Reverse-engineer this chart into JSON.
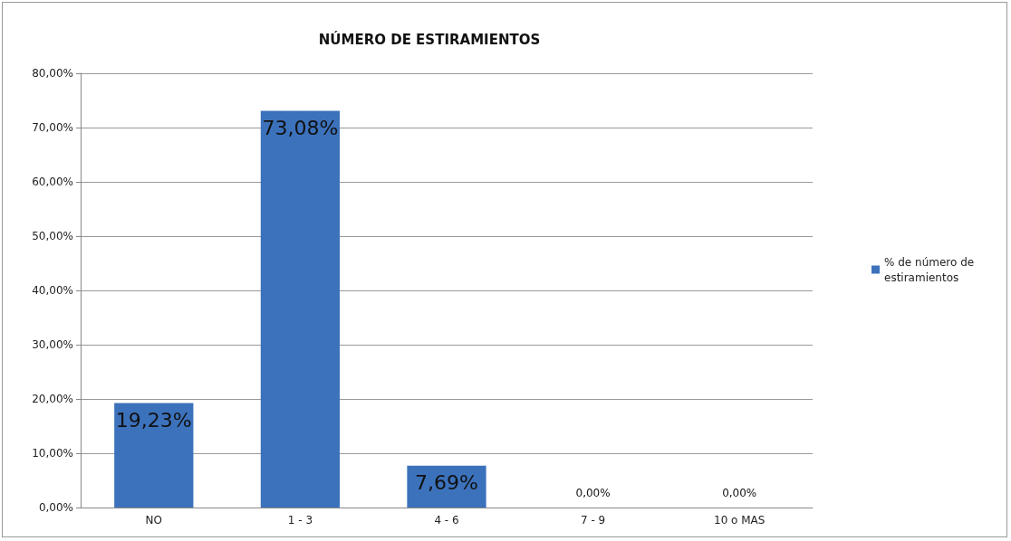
{
  "chart_data": {
    "type": "bar",
    "title": "NÚMERO DE ESTIRAMIENTOS",
    "categories": [
      "NO",
      "1 - 3",
      "4 - 6",
      "7 - 9",
      "10 o MAS"
    ],
    "series": [
      {
        "name": "% de número de estiramientos",
        "color": "#3c72bc",
        "values": [
          19.23,
          73.08,
          7.69,
          0,
          0
        ],
        "value_labels": [
          "19,23%",
          "73,08%",
          "7,69%",
          "0,00%",
          "0,00%"
        ]
      }
    ],
    "ylim": [
      0,
      80
    ],
    "yticks": [
      {
        "value": 0,
        "label": "0,00%"
      },
      {
        "value": 10,
        "label": "10,00%"
      },
      {
        "value": 20,
        "label": "20,00%"
      },
      {
        "value": 30,
        "label": "30,00%"
      },
      {
        "value": 40,
        "label": "40,00%"
      },
      {
        "value": 50,
        "label": "50,00%"
      },
      {
        "value": 60,
        "label": "60,00%"
      },
      {
        "value": 70,
        "label": "70,00%"
      },
      {
        "value": 80,
        "label": "80,00%"
      }
    ],
    "grid": "y",
    "legend": "right"
  }
}
